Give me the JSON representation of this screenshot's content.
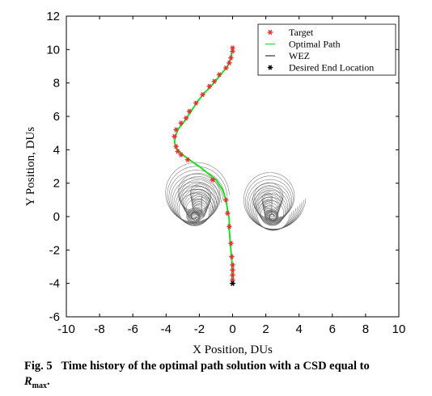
{
  "chart_data": {
    "type": "line",
    "xlabel": "X Position, DUs",
    "ylabel": "Y Position, DUs",
    "xlim": [
      -10,
      10
    ],
    "ylim": [
      -6,
      12
    ],
    "xticks": [
      -10,
      -8,
      -6,
      -4,
      -2,
      0,
      2,
      4,
      6,
      8,
      10
    ],
    "yticks": [
      -6,
      -4,
      -2,
      0,
      2,
      4,
      6,
      8,
      10,
      12
    ],
    "grid": false,
    "legend_position": "top-right",
    "legend": [
      {
        "label": "Target",
        "marker": "star",
        "color": "#e03030"
      },
      {
        "label": "Optimal Path",
        "line": "solid",
        "color": "#22dd22"
      },
      {
        "label": "WEZ",
        "line": "solid",
        "color": "#333333"
      },
      {
        "label": "Desired End Location",
        "marker": "asterisk",
        "color": "#000000"
      }
    ],
    "series": [
      {
        "name": "Optimal Path",
        "color": "#22dd22",
        "points": [
          [
            0,
            10.1
          ],
          [
            -0.1,
            9.5
          ],
          [
            -0.3,
            9.0
          ],
          [
            -0.8,
            8.4
          ],
          [
            -1.3,
            7.8
          ],
          [
            -1.7,
            7.4
          ],
          [
            -2.1,
            6.9
          ],
          [
            -2.5,
            6.3
          ],
          [
            -2.9,
            5.7
          ],
          [
            -3.3,
            5.2
          ],
          [
            -3.4,
            4.9
          ],
          [
            -3.5,
            4.5
          ],
          [
            -3.4,
            4.1
          ],
          [
            -3.0,
            3.7
          ],
          [
            -2.6,
            3.4
          ],
          [
            -2.0,
            3.0
          ],
          [
            -1.5,
            2.6
          ],
          [
            -1.0,
            2.2
          ],
          [
            -0.6,
            1.6
          ],
          [
            -0.4,
            1.0
          ],
          [
            -0.3,
            0.4
          ],
          [
            -0.2,
            -0.2
          ],
          [
            -0.2,
            -0.8
          ],
          [
            -0.15,
            -1.4
          ],
          [
            -0.1,
            -2.0
          ],
          [
            -0.05,
            -2.6
          ],
          [
            0,
            -3.2
          ],
          [
            0,
            -3.6
          ],
          [
            0,
            -4.0
          ]
        ]
      },
      {
        "name": "Target",
        "color": "#e03030",
        "points": [
          [
            0,
            10.1
          ],
          [
            0,
            9.9
          ],
          [
            -0.1,
            9.5
          ],
          [
            -0.2,
            9.2
          ],
          [
            -0.4,
            8.9
          ],
          [
            -0.8,
            8.5
          ],
          [
            -1.1,
            8.1
          ],
          [
            -1.4,
            7.8
          ],
          [
            -1.8,
            7.3
          ],
          [
            -2.2,
            6.8
          ],
          [
            -2.6,
            6.3
          ],
          [
            -2.8,
            5.9
          ],
          [
            -3.1,
            5.6
          ],
          [
            -3.4,
            5.2
          ],
          [
            -3.5,
            4.8
          ],
          [
            -3.4,
            4.2
          ],
          [
            -3.3,
            3.9
          ],
          [
            -3.1,
            3.7
          ],
          [
            -2.7,
            3.4
          ],
          [
            -1.2,
            2.2
          ],
          [
            -0.4,
            1.0
          ],
          [
            -0.3,
            0.2
          ],
          [
            -0.2,
            -0.6
          ],
          [
            -0.1,
            -1.6
          ],
          [
            -0.05,
            -2.4
          ],
          [
            0,
            -2.9
          ],
          [
            0,
            -3.2
          ],
          [
            0,
            -3.5
          ],
          [
            0,
            -3.8
          ]
        ]
      }
    ],
    "desired_end_location": [
      0,
      -4
    ]
  },
  "caption": {
    "label": "Fig. 5",
    "text": "Time history of the optimal path solution with a CSD equal to",
    "symbol": "R",
    "subscript": "max",
    "end": "."
  }
}
